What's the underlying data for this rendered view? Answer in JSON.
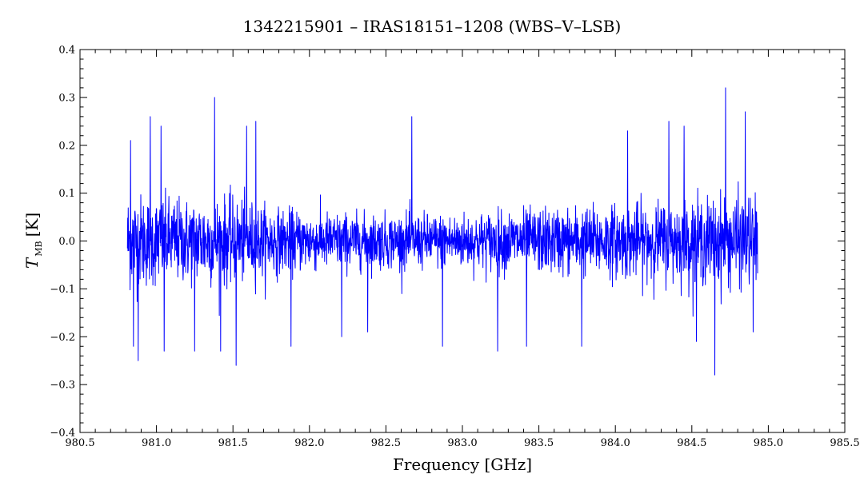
{
  "chart_data": {
    "type": "line",
    "title": "1342215901 – IRAS18151–1208 (WBS–V–LSB)",
    "xlabel": "Frequency [GHz]",
    "ylabel_symbol": "T",
    "ylabel_subscript": "MB",
    "ylabel_unit": "[K]",
    "xlim": [
      980.5,
      985.5
    ],
    "ylim": [
      -0.4,
      0.4
    ],
    "x_ticks": [
      980.5,
      981.0,
      981.5,
      982.0,
      982.5,
      983.0,
      983.5,
      984.0,
      984.5,
      985.0,
      985.5
    ],
    "x_tick_labels": [
      "980.5",
      "981.0",
      "981.5",
      "982.0",
      "982.5",
      "983.0",
      "983.5",
      "984.0",
      "984.5",
      "985.0",
      "985.5"
    ],
    "y_ticks": [
      -0.4,
      -0.3,
      -0.2,
      -0.1,
      0.0,
      0.1,
      0.2,
      0.3,
      0.4
    ],
    "y_tick_labels": [
      "−0.4",
      "−0.3",
      "−0.2",
      "−0.1",
      "0.0",
      "0.1",
      "0.2",
      "0.3",
      "0.4"
    ],
    "x_minor_step": 0.1,
    "y_minor_step": 0.02,
    "grid": false,
    "line_color": "#0000ff",
    "series": [
      {
        "x_range": [
          980.81,
          984.93
        ],
        "noise_envelope": [
          [
            980.81,
            0.1
          ],
          [
            981.0,
            0.09
          ],
          [
            981.2,
            0.085
          ],
          [
            981.4,
            0.09
          ],
          [
            981.6,
            0.08
          ],
          [
            981.8,
            0.065
          ],
          [
            982.0,
            0.06
          ],
          [
            982.3,
            0.055
          ],
          [
            982.6,
            0.055
          ],
          [
            982.9,
            0.055
          ],
          [
            983.2,
            0.06
          ],
          [
            983.5,
            0.065
          ],
          [
            983.8,
            0.07
          ],
          [
            984.1,
            0.075
          ],
          [
            984.4,
            0.08
          ],
          [
            984.7,
            0.09
          ],
          [
            984.93,
            0.09
          ]
        ],
        "spikes": [
          [
            980.83,
            0.21
          ],
          [
            980.85,
            -0.22
          ],
          [
            980.88,
            -0.25
          ],
          [
            980.96,
            0.26
          ],
          [
            981.03,
            0.24
          ],
          [
            981.05,
            -0.23
          ],
          [
            981.25,
            -0.23
          ],
          [
            981.38,
            0.3
          ],
          [
            981.42,
            -0.23
          ],
          [
            981.52,
            -0.26
          ],
          [
            981.59,
            0.24
          ],
          [
            981.65,
            0.25
          ],
          [
            981.88,
            -0.22
          ],
          [
            982.21,
            -0.2
          ],
          [
            982.38,
            -0.19
          ],
          [
            982.67,
            0.26
          ],
          [
            982.87,
            -0.22
          ],
          [
            983.23,
            -0.23
          ],
          [
            983.42,
            -0.22
          ],
          [
            983.78,
            -0.22
          ],
          [
            984.08,
            0.23
          ],
          [
            984.35,
            0.25
          ],
          [
            984.45,
            0.24
          ],
          [
            984.53,
            -0.21
          ],
          [
            984.65,
            -0.28
          ],
          [
            984.72,
            0.32
          ],
          [
            984.85,
            0.27
          ],
          [
            984.9,
            -0.19
          ]
        ]
      }
    ]
  }
}
